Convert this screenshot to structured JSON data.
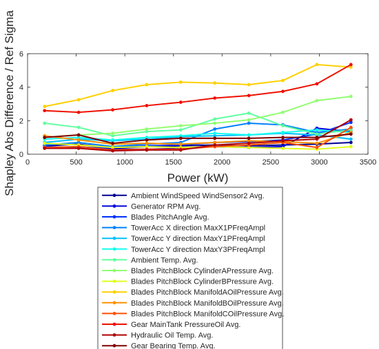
{
  "chart_data": {
    "type": "line",
    "xlabel": "Power (kW)",
    "ylabel": "Shapley Abs Difference / Ref Sigma",
    "xlim": [
      0,
      3500
    ],
    "ylim": [
      0,
      6
    ],
    "xticks": [
      0,
      500,
      1000,
      1500,
      2000,
      2500,
      3000,
      3500
    ],
    "yticks": [
      0,
      2,
      4,
      6
    ],
    "grid": false,
    "legend_placement": "bottom-outside",
    "x": [
      175,
      525,
      875,
      1225,
      1575,
      1925,
      2275,
      2625,
      2975,
      3325
    ],
    "series": [
      {
        "name": "Ambient WindSpeed WindSensor2 Avg.",
        "color": "#00008f",
        "values": [
          0.5,
          0.6,
          0.35,
          0.45,
          0.5,
          0.55,
          0.5,
          0.55,
          0.6,
          0.7
        ]
      },
      {
        "name": "Generator RPM Avg.",
        "color": "#0000df",
        "values": [
          0.4,
          0.45,
          0.3,
          0.3,
          0.35,
          0.45,
          0.4,
          0.45,
          1.55,
          1.35
        ]
      },
      {
        "name": "Blades PitchAngle Avg.",
        "color": "#0030ff",
        "values": [
          0.45,
          0.4,
          0.4,
          0.5,
          0.55,
          0.7,
          0.75,
          0.85,
          1.2,
          1.9
        ]
      },
      {
        "name": "TowerAcc X direction MaxX1PFreqAmpl",
        "color": "#0080ff",
        "values": [
          0.55,
          0.7,
          0.45,
          0.6,
          0.7,
          1.5,
          1.85,
          1.75,
          1.3,
          1.5
        ]
      },
      {
        "name": "TowerAcc Y direction MaxY1PFreqAmpl",
        "color": "#00c0ff",
        "values": [
          0.7,
          0.9,
          0.8,
          0.9,
          1.05,
          1.1,
          1.15,
          1.25,
          1.15,
          0.9
        ]
      },
      {
        "name": "TowerAcc Y direction MaxY3PFreqAmpl",
        "color": "#10ffef",
        "values": [
          0.9,
          1.0,
          0.85,
          1.0,
          1.1,
          1.25,
          1.15,
          1.3,
          1.45,
          1.3
        ]
      },
      {
        "name": "Ambient Temp. Avg.",
        "color": "#60ff9f",
        "values": [
          1.85,
          1.6,
          1.1,
          1.35,
          1.45,
          2.1,
          2.45,
          1.7,
          1.2,
          1.45
        ]
      },
      {
        "name": "Blades PitchBlock CylinderAPressure Avg.",
        "color": "#90ff70",
        "values": [
          1.0,
          1.15,
          1.25,
          1.5,
          1.7,
          1.85,
          2.05,
          2.5,
          3.2,
          3.45
        ]
      },
      {
        "name": "Blades PitchBlock CylinderBPressure Avg.",
        "color": "#e0ff20",
        "values": [
          0.65,
          0.55,
          0.4,
          0.45,
          0.4,
          0.45,
          0.4,
          0.35,
          0.3,
          0.45
        ]
      },
      {
        "name": "Blades PitchBlock ManifoldAOilPressure Avg.",
        "color": "#ffd000",
        "values": [
          2.85,
          3.25,
          3.8,
          4.15,
          4.3,
          4.25,
          4.15,
          4.4,
          5.35,
          5.2
        ]
      },
      {
        "name": "Blades PitchBlock ManifoldBOilPressure Avg.",
        "color": "#ff9000",
        "values": [
          1.1,
          0.85,
          0.6,
          0.65,
          0.6,
          0.7,
          0.8,
          0.75,
          0.65,
          1.3
        ]
      },
      {
        "name": "Blades PitchBlock ManifoldCOilPressure Avg.",
        "color": "#ff5000",
        "values": [
          0.4,
          0.45,
          0.25,
          0.3,
          0.3,
          0.45,
          0.55,
          0.7,
          0.4,
          1.6
        ]
      },
      {
        "name": "Gear MainTank PressureOil Avg.",
        "color": "#ef1000",
        "values": [
          2.6,
          2.5,
          2.65,
          2.9,
          3.1,
          3.35,
          3.5,
          3.75,
          4.2,
          5.35
        ]
      },
      {
        "name": "Hydraulic Oil Temp. Avg.",
        "color": "#b00000",
        "values": [
          0.35,
          0.35,
          0.2,
          0.25,
          0.25,
          0.55,
          0.65,
          0.8,
          0.9,
          2.05
        ]
      },
      {
        "name": "Gear Bearing Temp. Avg.",
        "color": "#800000",
        "values": [
          1.0,
          1.15,
          0.65,
          0.85,
          0.95,
          0.95,
          0.95,
          1.0,
          1.0,
          1.2
        ]
      }
    ]
  }
}
